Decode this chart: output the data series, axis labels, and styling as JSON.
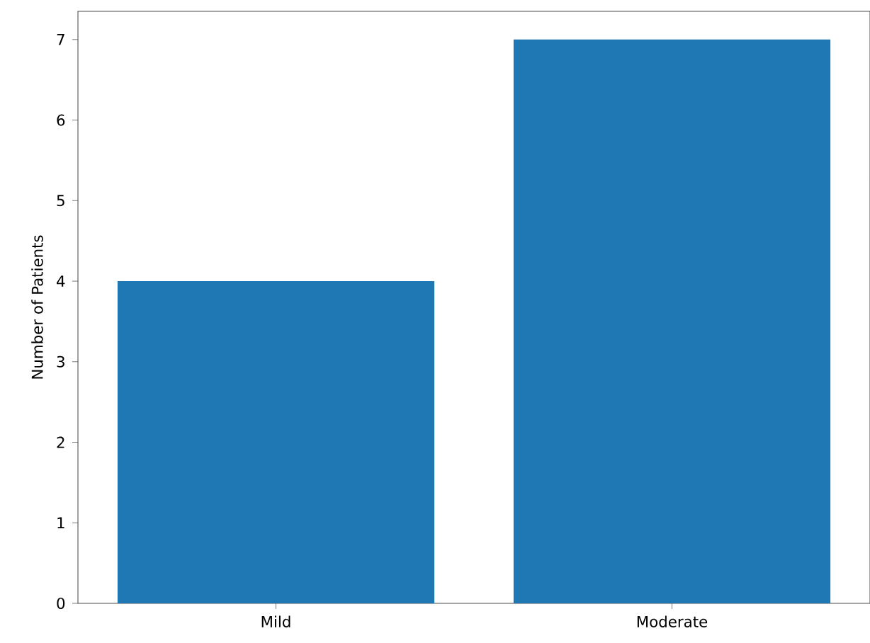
{
  "chart_data": {
    "type": "bar",
    "ylabel": "Number of Patients",
    "categories": [
      "Mild",
      "Moderate"
    ],
    "values": [
      4,
      7
    ],
    "color": "#1f77b4",
    "ylim": [
      0,
      7.35
    ],
    "yticks": [
      0,
      1,
      2,
      3,
      4,
      5,
      6,
      7
    ]
  }
}
